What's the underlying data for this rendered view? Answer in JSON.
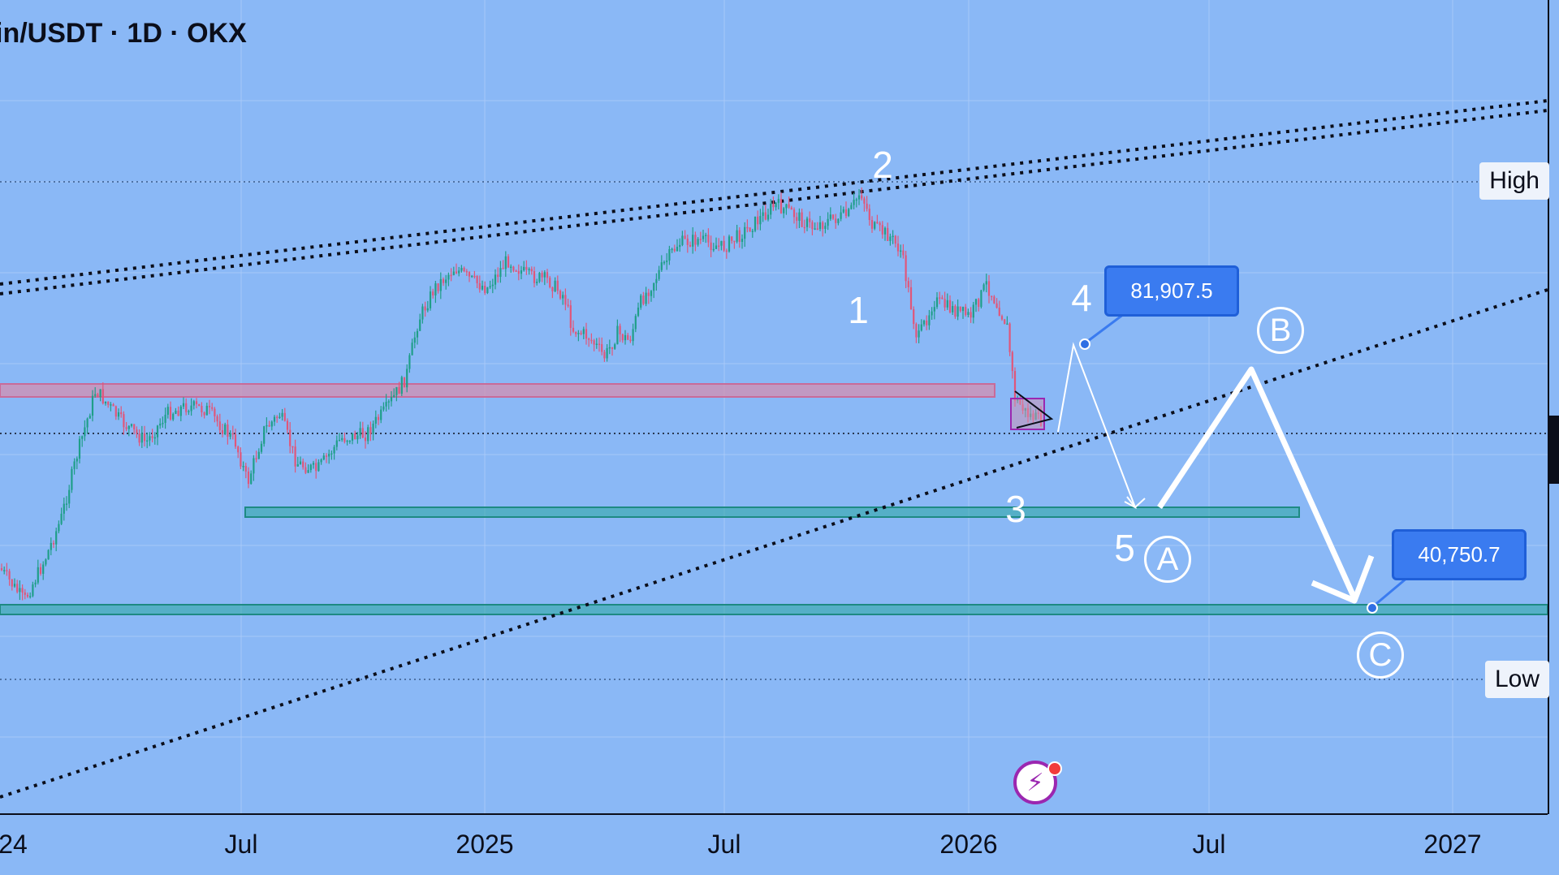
{
  "header": {
    "symbol_title": "in/USDT · 1D · OKX"
  },
  "chart_data": {
    "type": "candlestick",
    "title": "in/USDT · 1D · OKX",
    "x_ticks": [
      "24",
      "Jul",
      "2025",
      "Jul",
      "2026",
      "Jul",
      "2027"
    ],
    "price_tags": {
      "high": "High",
      "low": "Low"
    },
    "wave_labels": [
      "1",
      "2",
      "3",
      "4",
      "5"
    ],
    "corrective_labels": [
      "A",
      "B",
      "C"
    ],
    "price_callouts": [
      "81,907.5",
      "40,750.7"
    ],
    "approx_close_series": [
      {
        "date": "2024-02",
        "close": 58000
      },
      {
        "date": "2024-03",
        "close": 70000
      },
      {
        "date": "2024-05",
        "close": 66000
      },
      {
        "date": "2024-07",
        "close": 60000
      },
      {
        "date": "2024-09",
        "close": 62000
      },
      {
        "date": "2024-11",
        "close": 95000
      },
      {
        "date": "2025-01",
        "close": 100000
      },
      {
        "date": "2025-04",
        "close": 80000
      },
      {
        "date": "2025-07",
        "close": 115000
      },
      {
        "date": "2025-10",
        "close": 122000
      },
      {
        "date": "2025-12",
        "close": 88000
      },
      {
        "date": "2026-02",
        "close": 70000
      }
    ],
    "colors": {
      "background": "#8ab8f6",
      "up": "#1f9e89",
      "down": "#e0567a",
      "callout": "#3a7bf0"
    }
  },
  "icons": {
    "assistant": "lightning-icon"
  }
}
